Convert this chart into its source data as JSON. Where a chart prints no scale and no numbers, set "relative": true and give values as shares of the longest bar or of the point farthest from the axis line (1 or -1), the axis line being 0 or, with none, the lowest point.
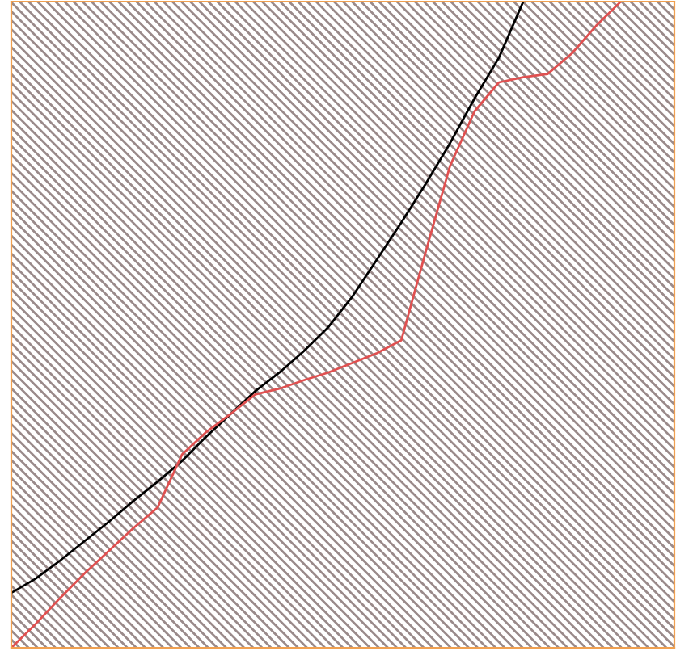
{
  "chart_data": {
    "type": "line",
    "relative": true,
    "categories": [
      null,
      null,
      null,
      null,
      null,
      null,
      null,
      null,
      null,
      null,
      null,
      null,
      null,
      null,
      null,
      null,
      null,
      null,
      null,
      null,
      null,
      null,
      null,
      null,
      null,
      null,
      null,
      null
    ],
    "series": [
      {
        "color": "#000000",
        "values": [
          0.085,
          0.107,
          0.135,
          0.165,
          0.195,
          0.227,
          0.257,
          0.289,
          0.327,
          0.362,
          0.397,
          0.426,
          0.459,
          0.496,
          0.544,
          0.601,
          0.658,
          0.718,
          0.781,
          0.85,
          0.913,
          1,
          null,
          null,
          null,
          null,
          null,
          null
        ]
      },
      {
        "color": "#e05050",
        "values": [
          0,
          0.037,
          0.077,
          0.115,
          0.15,
          0.185,
          0.217,
          0.299,
          0.334,
          0.362,
          0.392,
          0.401,
          0.414,
          0.426,
          0.441,
          0.456,
          0.476,
          0.613,
          0.746,
          0.83,
          0.875,
          0.883,
          0.888,
          0.92,
          0.963,
          1,
          null,
          null
        ]
      }
    ],
    "grid": false,
    "legend": false,
    "marker": "none",
    "line_style": "solid"
  }
}
